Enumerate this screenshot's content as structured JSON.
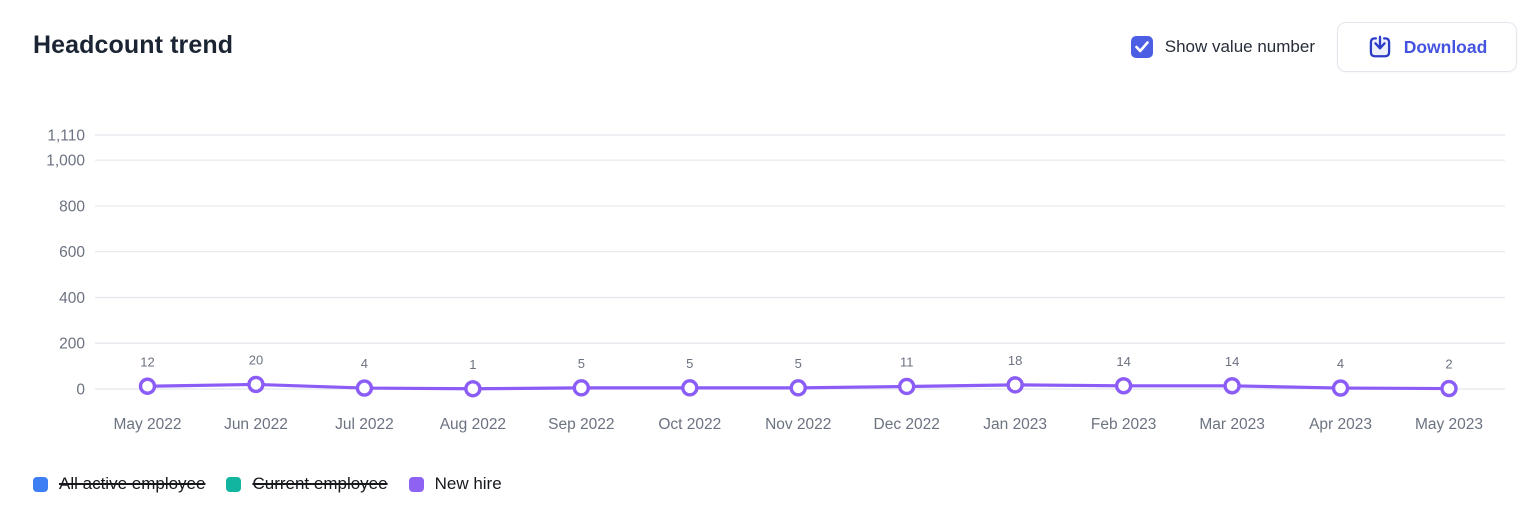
{
  "header": {
    "title": "Headcount trend",
    "show_value_checkbox": {
      "label": "Show value number",
      "checked": true
    },
    "download_button": {
      "label": "Download"
    }
  },
  "colors": {
    "accent_checkbox": "#4c5fe4",
    "download_text": "#4554e0",
    "download_icon": "#2c3cc6",
    "line_purple": "#8b5cf6",
    "legend_blue": "#3d7ef5",
    "legend_teal": "#12b5a0",
    "legend_purple": "#8e63f3",
    "grid": "#e4e7ed",
    "axis_text": "#6b7280",
    "value_label_text": "#6b7280"
  },
  "chart_data": {
    "type": "line",
    "title": "Headcount trend",
    "categories": [
      "May 2022",
      "Jun 2022",
      "Jul 2022",
      "Aug 2022",
      "Sep 2022",
      "Oct 2022",
      "Nov 2022",
      "Dec 2022",
      "Jan 2023",
      "Feb 2023",
      "Mar 2023",
      "Apr 2023",
      "May 2023"
    ],
    "series": [
      {
        "name": "All active employee",
        "color": "#3d7ef5",
        "visible": false
      },
      {
        "name": "Current employee",
        "color": "#12b5a0",
        "visible": false
      },
      {
        "name": "New hire",
        "color": "#8b5cf6",
        "visible": true,
        "values": [
          12,
          20,
          4,
          1,
          5,
          5,
          5,
          11,
          18,
          14,
          14,
          4,
          2
        ]
      }
    ],
    "yticks": [
      1110,
      1000,
      800,
      600,
      400,
      200,
      0
    ],
    "ytick_labels": [
      "1,110",
      "1,000",
      "800",
      "600",
      "400",
      "200",
      "0"
    ],
    "ylim": [
      0,
      1110
    ],
    "grid": true,
    "show_value_labels": true,
    "markers": "open-circle",
    "legend_position": "bottom"
  },
  "legend": {
    "items": [
      {
        "label": "All active employee",
        "color": "#3d7ef5",
        "strikethrough": true
      },
      {
        "label": "Current employee",
        "color": "#12b5a0",
        "strikethrough": true
      },
      {
        "label": "New hire",
        "color": "#8e63f3",
        "strikethrough": false
      }
    ]
  }
}
